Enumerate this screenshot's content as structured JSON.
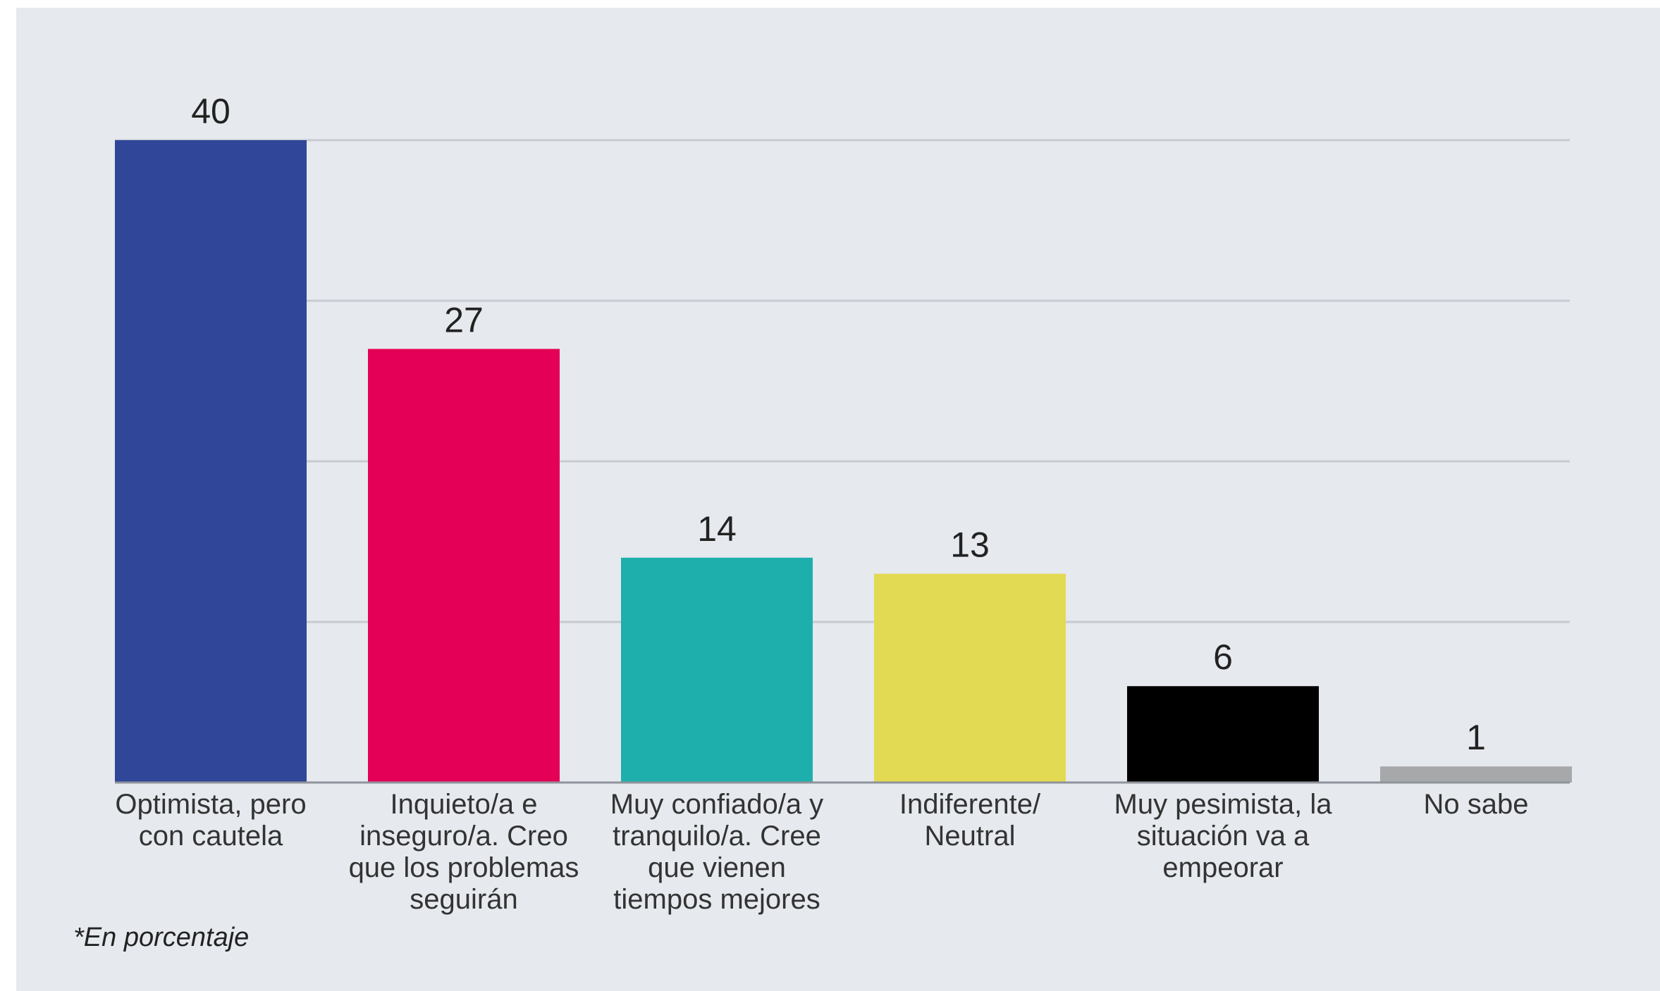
{
  "chart_data": {
    "type": "bar",
    "categories": [
      "Optimista, pero con cautela",
      "Inquieto/a e inseguro/a. Creo que los problemas seguirán",
      "Muy confiado/a y tranquilo/a. Cree que vienen tiempos mejores",
      "Indiferente/ Neutral",
      "Muy pesimista, la situación va a empeorar",
      "No sabe"
    ],
    "values": [
      40,
      27,
      14,
      13,
      6,
      1
    ],
    "colors": [
      "#2f4699",
      "#e40056",
      "#1eafad",
      "#e2da52",
      "#000000",
      "#a7a8aa"
    ],
    "ylim": [
      0,
      40
    ],
    "grid": true,
    "gridline_color": "#c7cad1",
    "footnote": "*En porcentaje"
  }
}
